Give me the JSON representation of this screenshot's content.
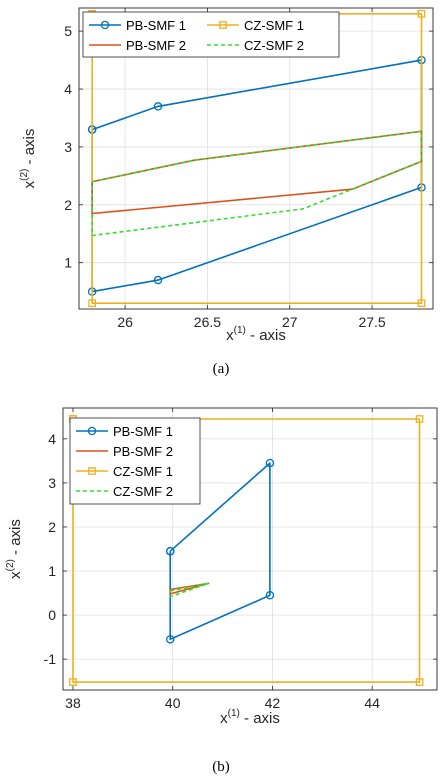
{
  "colors": {
    "pb_smf_1": "#0072BD",
    "pb_smf_2": "#D95319",
    "cz_smf_1": "#EDB120",
    "cz_smf_2": "#33DD33"
  },
  "chart_data": [
    {
      "type": "line",
      "caption": "(a)",
      "xlabel": {
        "base": "x",
        "sup": "(1)",
        "rest": " - axis"
      },
      "ylabel": {
        "base": "x",
        "sup": "(2)",
        "rest": " - axis"
      },
      "xlim": [
        25.72,
        27.87
      ],
      "ylim": [
        0.2,
        5.4
      ],
      "xticks": [
        {
          "v": 26,
          "label": "26"
        },
        {
          "v": 26.5,
          "label": "26.5"
        },
        {
          "v": 27,
          "label": "27"
        },
        {
          "v": 27.5,
          "label": "27.5"
        }
      ],
      "yticks": [
        {
          "v": 1,
          "label": "1"
        },
        {
          "v": 2,
          "label": "2"
        },
        {
          "v": 3,
          "label": "3"
        },
        {
          "v": 4,
          "label": "4"
        },
        {
          "v": 5,
          "label": "5"
        }
      ],
      "grid": true,
      "legend": {
        "placement": "top-left",
        "columns": 2
      },
      "series": [
        {
          "name": "PB-SMF 1",
          "key": "pb_smf_1",
          "style": "solid",
          "marker": "circle",
          "x": [
            25.8,
            26.2,
            27.8,
            27.8,
            26.2,
            25.8,
            25.8
          ],
          "y": [
            3.3,
            3.7,
            4.5,
            2.3,
            0.7,
            0.5,
            3.3
          ]
        },
        {
          "name": "CZ-SMF 1",
          "key": "cz_smf_1",
          "style": "solid",
          "marker": "square",
          "x": [
            25.8,
            27.8,
            27.8,
            25.8,
            25.8
          ],
          "y": [
            5.3,
            5.3,
            0.3,
            0.3,
            5.3
          ]
        },
        {
          "name": "PB-SMF 2",
          "key": "pb_smf_2",
          "style": "solid",
          "marker": "none",
          "x": [
            25.8,
            26.42,
            27.8,
            27.8,
            27.38,
            25.8,
            25.8
          ],
          "y": [
            2.4,
            2.77,
            3.27,
            2.75,
            2.27,
            1.85,
            2.4
          ]
        },
        {
          "name": "CZ-SMF 2",
          "key": "cz_smf_2",
          "style": "dashed",
          "marker": "none",
          "x": [
            25.8,
            26.42,
            27.8,
            27.8,
            27.08,
            25.8,
            25.8
          ],
          "y": [
            2.4,
            2.77,
            3.27,
            2.75,
            1.93,
            1.47,
            2.4
          ]
        }
      ]
    },
    {
      "type": "line",
      "caption": "(b)",
      "xlabel": {
        "base": "x",
        "sup": "(1)",
        "rest": " - axis"
      },
      "ylabel": {
        "base": "x",
        "sup": "(2)",
        "rest": " - axis"
      },
      "xlim": [
        37.8,
        45.3
      ],
      "ylim": [
        -1.7,
        4.7
      ],
      "xticks": [
        {
          "v": 38,
          "label": "38"
        },
        {
          "v": 40,
          "label": "40"
        },
        {
          "v": 42,
          "label": "42"
        },
        {
          "v": 44,
          "label": "44"
        }
      ],
      "yticks": [
        {
          "v": -1,
          "label": "-1"
        },
        {
          "v": 0,
          "label": "0"
        },
        {
          "v": 1,
          "label": "1"
        },
        {
          "v": 2,
          "label": "2"
        },
        {
          "v": 3,
          "label": "3"
        },
        {
          "v": 4,
          "label": "4"
        }
      ],
      "grid": true,
      "legend": {
        "placement": "top-left",
        "columns": 1
      },
      "series": [
        {
          "name": "PB-SMF 1",
          "key": "pb_smf_1",
          "style": "solid",
          "marker": "circle",
          "x": [
            39.95,
            41.95,
            41.95,
            39.95,
            39.95
          ],
          "y": [
            1.45,
            3.45,
            0.45,
            -0.55,
            1.45
          ]
        },
        {
          "name": "PB-SMF 2",
          "key": "pb_smf_2",
          "style": "solid",
          "marker": "none",
          "x": [
            39.95,
            40.72,
            39.95,
            39.95
          ],
          "y": [
            0.58,
            0.72,
            0.48,
            0.58
          ]
        },
        {
          "name": "CZ-SMF 1",
          "key": "cz_smf_1",
          "style": "solid",
          "marker": "square",
          "x": [
            38.0,
            44.95,
            44.95,
            38.0,
            38.0
          ],
          "y": [
            4.45,
            4.45,
            -1.52,
            -1.52,
            4.45
          ]
        },
        {
          "name": "CZ-SMF 2",
          "key": "cz_smf_2",
          "style": "dashed",
          "marker": "none",
          "x": [
            39.95,
            40.72,
            39.95,
            39.95
          ],
          "y": [
            0.55,
            0.72,
            0.42,
            0.55
          ]
        }
      ]
    }
  ]
}
